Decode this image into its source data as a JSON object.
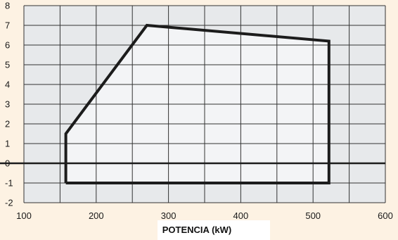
{
  "chart_data": {
    "type": "area",
    "title": "",
    "xlabel": "POTENCIA (kW)",
    "ylabel": "",
    "xlim": [
      100,
      600
    ],
    "ylim": [
      -2,
      8
    ],
    "grid": true,
    "x_ticks": [
      "100",
      "200",
      "300",
      "400",
      "500",
      "600"
    ],
    "y_ticks": [
      "-2",
      "-1",
      "0",
      "1",
      "2",
      "3",
      "4",
      "5",
      "6",
      "7",
      "8"
    ],
    "series": [
      {
        "x": [
          158,
          158,
          270,
          522,
          522,
          158
        ],
        "y": [
          -1,
          1.5,
          7,
          6.2,
          -1,
          -1
        ]
      }
    ],
    "colors": {
      "background": "#fdf2e3",
      "plot_background": "#e7e9eb",
      "region_fill": "#f3f4f6",
      "outline": "#1c1c1c",
      "grid": "#333333"
    }
  }
}
